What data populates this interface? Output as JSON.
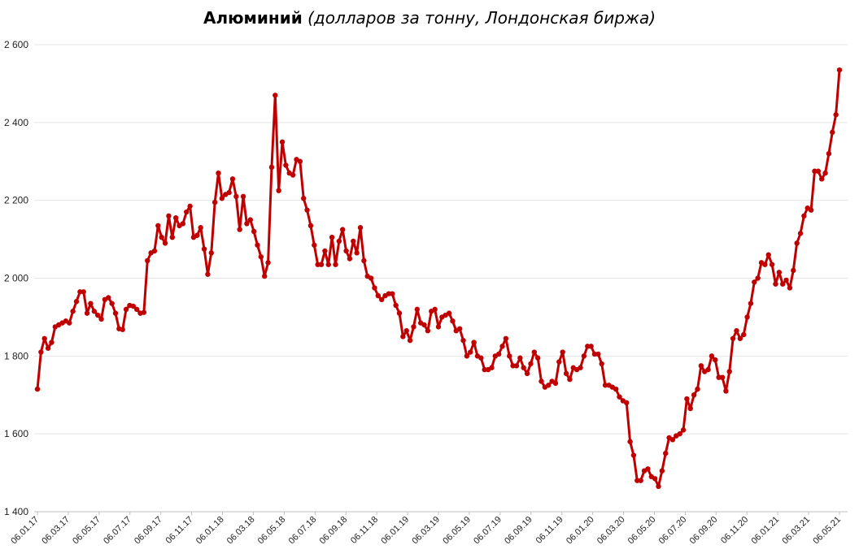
{
  "chart_data": {
    "type": "line",
    "title_bold": "Алюминий",
    "title_italic": " (долларов за тонну, Лондонская биржа)",
    "xlabel": "",
    "ylabel": "",
    "ylim": [
      1400,
      2600
    ],
    "yticks": [
      "1 400",
      "1 600",
      "1 800",
      "2 000",
      "2 200",
      "2 400",
      "2 600"
    ],
    "ytick_values": [
      1400,
      1600,
      1800,
      2000,
      2200,
      2400,
      2600
    ],
    "xticks": [
      "06.01.17",
      "06.03.17",
      "06.05.17",
      "06.07.17",
      "06.09.17",
      "06.11.17",
      "06.01.18",
      "06.03.18",
      "06.05.18",
      "06.07.18",
      "06.09.18",
      "06.11.18",
      "06.01.19",
      "06.03.19",
      "06.05.19",
      "06.07.19",
      "06.09.19",
      "06.11.19",
      "06.01.20",
      "06.03.20",
      "06.05.20",
      "06.07.20",
      "06.09.20",
      "06.11.20",
      "06.01.21",
      "06.03.21",
      "06.05.21"
    ],
    "grid": true,
    "legend": "none",
    "line_color": "#c00000",
    "series": [
      {
        "values": [
          1715,
          1810,
          1845,
          1820,
          1835,
          1875,
          1880,
          1885,
          1890,
          1885,
          1915,
          1940,
          1965,
          1965,
          1910,
          1935,
          1915,
          1905,
          1895,
          1945,
          1950,
          1935,
          1910,
          1870,
          1868,
          1920,
          1930,
          1928,
          1920,
          1910,
          1912,
          2045,
          2065,
          2070,
          2135,
          2105,
          2090,
          2160,
          2105,
          2155,
          2135,
          2140,
          2170,
          2185,
          2105,
          2110,
          2130,
          2075,
          2010,
          2065,
          2195,
          2270,
          2205,
          2215,
          2220,
          2255,
          2210,
          2125,
          2210,
          2140,
          2150,
          2120,
          2085,
          2055,
          2005,
          2040,
          2285,
          2470,
          2225,
          2350,
          2290,
          2270,
          2265,
          2305,
          2300,
          2205,
          2175,
          2135,
          2085,
          2035,
          2035,
          2070,
          2035,
          2105,
          2035,
          2095,
          2125,
          2070,
          2050,
          2095,
          2065,
          2130,
          2045,
          2005,
          2000,
          1975,
          1955,
          1945,
          1955,
          1960,
          1960,
          1930,
          1910,
          1850,
          1865,
          1840,
          1875,
          1920,
          1885,
          1880,
          1865,
          1915,
          1920,
          1875,
          1900,
          1905,
          1910,
          1890,
          1865,
          1870,
          1840,
          1800,
          1810,
          1835,
          1800,
          1795,
          1765,
          1765,
          1770,
          1800,
          1805,
          1825,
          1845,
          1800,
          1775,
          1775,
          1795,
          1770,
          1755,
          1780,
          1810,
          1795,
          1735,
          1720,
          1725,
          1735,
          1730,
          1785,
          1810,
          1755,
          1740,
          1770,
          1765,
          1770,
          1800,
          1825,
          1825,
          1805,
          1805,
          1780,
          1725,
          1725,
          1720,
          1715,
          1695,
          1685,
          1680,
          1580,
          1545,
          1480,
          1480,
          1505,
          1510,
          1490,
          1485,
          1465,
          1505,
          1550,
          1590,
          1585,
          1595,
          1600,
          1610,
          1690,
          1665,
          1700,
          1715,
          1775,
          1760,
          1765,
          1800,
          1790,
          1745,
          1745,
          1710,
          1760,
          1845,
          1865,
          1845,
          1855,
          1900,
          1935,
          1990,
          2000,
          2040,
          2035,
          2060,
          2035,
          1985,
          2015,
          1985,
          1995,
          1975,
          2020,
          2090,
          2115,
          2160,
          2180,
          2175,
          2275,
          2275,
          2255,
          2270,
          2320,
          2375,
          2420,
          2535
        ]
      }
    ]
  }
}
